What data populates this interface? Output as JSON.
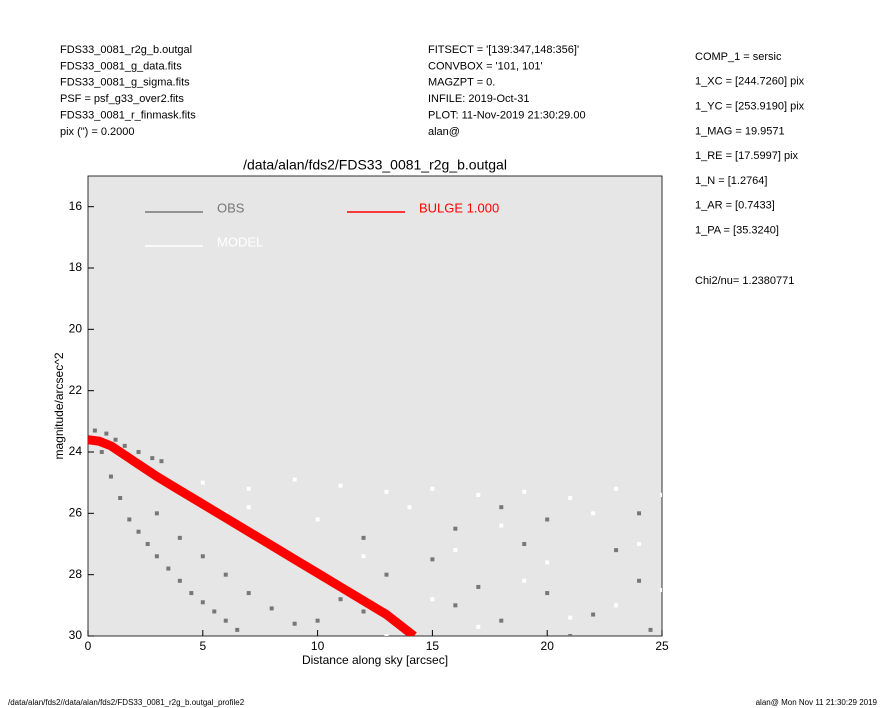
{
  "chart_data": {
    "type": "scatter",
    "title": "/data/alan/fds2/FDS33_0081_r2g_b.outgal",
    "x_label": "Distance along sky [arcsec]",
    "y_label": "magnitude/arcsec^2",
    "header_left": [
      "FDS33_0081_r2g_b.outgal",
      "FDS33_0081_g_data.fits",
      "FDS33_0081_g_sigma.fits",
      "PSF    = psf_g33_over2.fits",
      "FDS33_0081_r_finmask.fits",
      "pix (\") =  0.2000"
    ],
    "header_mid": [
      "FITSECT = '[139:347,148:356]'",
      "CONVBOX = '101, 101'",
      "MAGZPT =                0.",
      "INFILE: 2019-Oct-31",
      "PLOT: 11-Nov-2019 21:30:29.00",
      "alan@"
    ],
    "params": [
      "COMP_1  = sersic",
      "1_XC    = [244.7260] pix",
      "1_YC    = [253.9190] pix",
      "1_MAG   = 19.9571",
      "1_RE    = [17.5997] pix",
      "1_N     = [1.2764]",
      "1_AR    = [0.7433]",
      "1_PA    = [35.3240]"
    ],
    "chi2": "Chi2/nu=       1.2380771",
    "footer_left": "/data/alan/fds2//data/alan/fds2/FDS33_0081_r2g_b.outgal_profile2",
    "footer_right": "alan@  Mon Nov 11 21:30:29 2019",
    "xlim": [
      0,
      25
    ],
    "xticks": [
      0,
      5,
      10,
      15,
      20,
      25
    ],
    "ylim": [
      30,
      15
    ],
    "yticks": [
      16,
      18,
      20,
      22,
      24,
      26,
      28,
      30
    ],
    "background": "#e6e6e6",
    "series": [
      {
        "name": "OBS",
        "color": "#777777",
        "mode": "scatter",
        "x": [
          0.3,
          0.8,
          1.2,
          1.6,
          2.2,
          2.8,
          3.2,
          0.6,
          1.0,
          1.4,
          1.8,
          2.2,
          2.6,
          3.0,
          3.5,
          4.0,
          4.5,
          5.0,
          5.5,
          6,
          6.5,
          3,
          4,
          5,
          6,
          7,
          8,
          9,
          10,
          11,
          12,
          14,
          16,
          18,
          20,
          22,
          24,
          24.5,
          15,
          19,
          23,
          13,
          17,
          21,
          9,
          12,
          16,
          20,
          24,
          18
        ],
        "values": [
          23.3,
          23.4,
          23.6,
          23.8,
          24.0,
          24.2,
          24.3,
          24.0,
          24.8,
          25.5,
          26.2,
          26.6,
          27.0,
          27.4,
          27.8,
          28.2,
          28.6,
          28.9,
          29.2,
          29.5,
          29.8,
          26,
          26.8,
          27.4,
          28,
          28.6,
          29.1,
          29.6,
          29.5,
          28.8,
          29.2,
          29.8,
          29.0,
          29.5,
          28.6,
          29.3,
          28.2,
          29.8,
          27.5,
          27.0,
          27.2,
          28.0,
          28.4,
          30,
          27.5,
          26.8,
          26.5,
          26.2,
          26.0,
          25.8
        ]
      },
      {
        "name": "MODEL",
        "color": "#ffffff",
        "mode": "scatter",
        "x": [
          5,
          7,
          9,
          11,
          13,
          15,
          17,
          19,
          21,
          23,
          25,
          6,
          10,
          14,
          18,
          22,
          8,
          12,
          16,
          20,
          24,
          11,
          15,
          19,
          23,
          17,
          13,
          21,
          7,
          25
        ],
        "values": [
          25.0,
          25.2,
          24.9,
          25.1,
          25.3,
          25.2,
          25.4,
          25.3,
          25.5,
          25.2,
          25.4,
          26,
          26.2,
          25.8,
          26.4,
          26.0,
          27.0,
          27.4,
          27.2,
          27.6,
          27.0,
          28.5,
          28.8,
          28.2,
          29.0,
          29.7,
          30,
          29.4,
          25.8,
          28.5
        ]
      },
      {
        "name": "BULGE  1.000",
        "color": "#ff0000",
        "mode": "line",
        "x": [
          0,
          0.5,
          1,
          2,
          3,
          4,
          5,
          6,
          7,
          8,
          9,
          10,
          11,
          12,
          13,
          14.2
        ],
        "values": [
          23.6,
          23.65,
          23.8,
          24.3,
          24.8,
          25.25,
          25.7,
          26.15,
          26.6,
          27.05,
          27.5,
          27.95,
          28.4,
          28.85,
          29.3,
          30
        ]
      }
    ]
  }
}
